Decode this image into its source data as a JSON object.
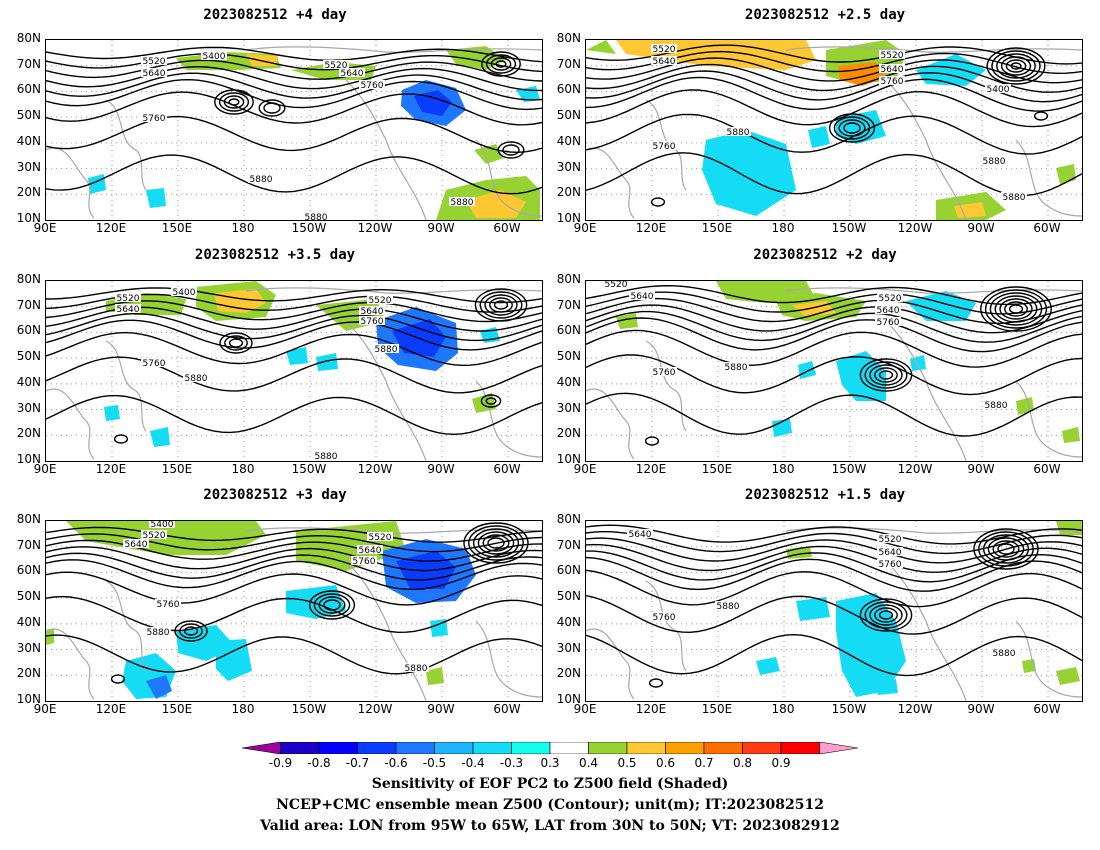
{
  "panels": [
    {
      "title": "2023082512  +4 day"
    },
    {
      "title": "2023082512  +2.5 day"
    },
    {
      "title": "2023082512  +3.5 day"
    },
    {
      "title": "2023082512  +2 day"
    },
    {
      "title": "2023082512  +3 day"
    },
    {
      "title": "2023082512  +1.5 day"
    }
  ],
  "axes": {
    "lat_labels": [
      "80N",
      "70N",
      "60N",
      "50N",
      "40N",
      "30N",
      "20N",
      "10N"
    ],
    "lon_labels": [
      "90E",
      "120E",
      "150E",
      "180",
      "150W",
      "120W",
      "90W",
      "60W"
    ]
  },
  "contour_labels": {
    "p0": [
      "5400",
      "5520",
      "5640",
      "5520",
      "5640",
      "5760",
      "5760",
      "5880",
      "5880",
      "5880"
    ],
    "p1": [
      "5520",
      "5640",
      "5520",
      "5640",
      "5760",
      "5400",
      "5880",
      "5760",
      "5880",
      "5880"
    ],
    "p2": [
      "5520",
      "5640",
      "5400",
      "5520",
      "5640",
      "5760",
      "5880",
      "5760",
      "5880",
      "5880"
    ],
    "p3": [
      "5520",
      "5640",
      "5520",
      "5640",
      "5760",
      "5880",
      "5760",
      "5880"
    ],
    "p4": [
      "5400",
      "5520",
      "5640",
      "5520",
      "5640",
      "5760",
      "5760",
      "5880",
      "5880"
    ],
    "p5": [
      "5640",
      "5520",
      "5640",
      "5760",
      "5880",
      "5760",
      "5880"
    ]
  },
  "colorbar": {
    "ticks": [
      "-0.9",
      "-0.8",
      "-0.7",
      "-0.6",
      "-0.5",
      "-0.4",
      "-0.3",
      "0.3",
      "0.4",
      "0.5",
      "0.6",
      "0.7",
      "0.8",
      "0.9"
    ],
    "colors": [
      "#a0009a",
      "#1a00c8",
      "#0000ff",
      "#0a3cff",
      "#1e78ff",
      "#1eb4ff",
      "#14dcf5",
      "#14fff0",
      "#ffffff",
      "#96d232",
      "#ffc832",
      "#ffa000",
      "#ff6e00",
      "#ff3c14",
      "#ff0000",
      "#ff9ecf"
    ]
  },
  "caption": {
    "line1": "Sensitivity of EOF PC2 to Z500 field (Shaded)",
    "line2": "NCEP+CMC ensemble mean Z500 (Contour); unit(m); IT:2023082512",
    "line3": "Valid area: LON from 95W to 65W, LAT from 30N to 50N; VT: 2023082912"
  }
}
